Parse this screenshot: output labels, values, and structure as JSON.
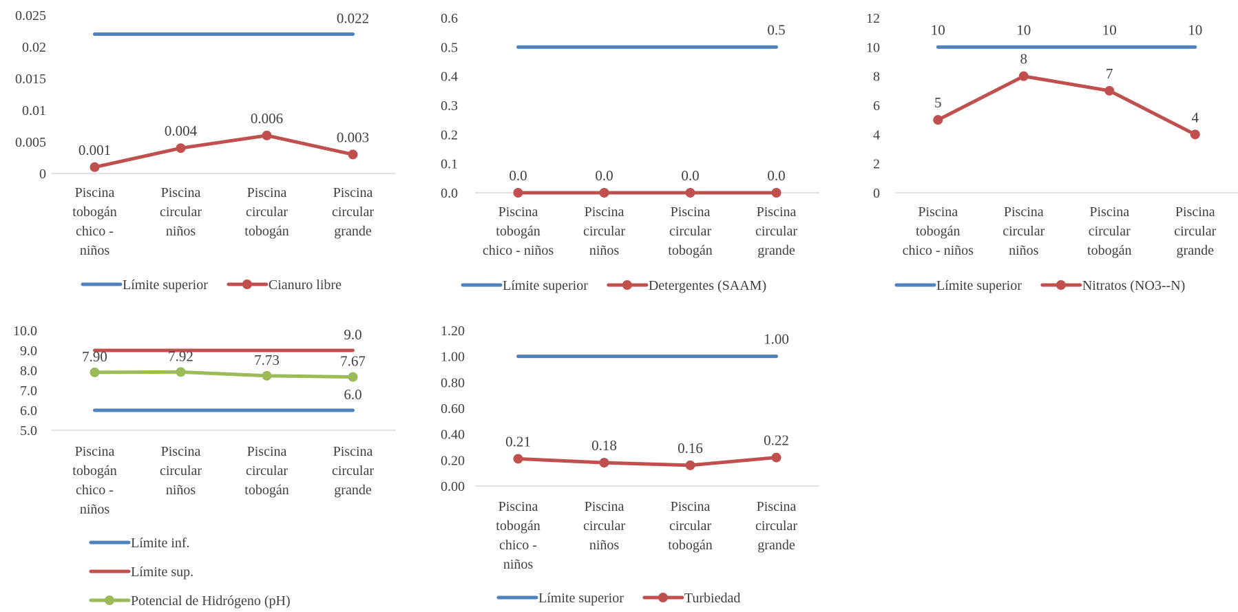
{
  "chart_data": [
    {
      "type": "line",
      "categories": [
        [
          "Piscina",
          "tobogán",
          "chico -",
          "niños"
        ],
        [
          "Piscina",
          "circular",
          "niños"
        ],
        [
          "Piscina",
          "circular",
          "tobogán"
        ],
        [
          "Piscina",
          "circular",
          "grande"
        ]
      ],
      "ylim": [
        0,
        0.025
      ],
      "yticks": [
        "0.025",
        "0.02",
        "0.015",
        "0.01",
        "0.005",
        "0"
      ],
      "grid": false,
      "legend": "bottom",
      "series": [
        {
          "name": "Límite superior",
          "color": "#4F81BD",
          "marker": false,
          "values": [
            0.022,
            0.022,
            0.022,
            0.022
          ],
          "labels": [
            "",
            "",
            "",
            "0.022"
          ]
        },
        {
          "name": "Cianuro libre",
          "color": "#C0504D",
          "marker": true,
          "values": [
            0.001,
            0.004,
            0.006,
            0.003
          ],
          "labels": [
            "0.001",
            "0.004",
            "0.006",
            "0.003"
          ]
        }
      ]
    },
    {
      "type": "line",
      "categories": [
        [
          "Piscina",
          "tobogán",
          "chico - niños"
        ],
        [
          "Piscina",
          "circular",
          "niños"
        ],
        [
          "Piscina",
          "circular",
          "tobogán"
        ],
        [
          "Piscina",
          "circular",
          "grande"
        ]
      ],
      "ylim": [
        0,
        0.6
      ],
      "yticks": [
        "0.6",
        "0.5",
        "0.4",
        "0.3",
        "0.2",
        "0.1",
        "0.0"
      ],
      "grid": false,
      "legend": "bottom",
      "series": [
        {
          "name": "Límite superior",
          "color": "#4F81BD",
          "marker": false,
          "values": [
            0.5,
            0.5,
            0.5,
            0.5
          ],
          "labels": [
            "",
            "",
            "",
            "0.5"
          ]
        },
        {
          "name": "Detergentes (SAAM)",
          "color": "#C0504D",
          "marker": true,
          "values": [
            0.0,
            0.0,
            0.0,
            0.0
          ],
          "labels": [
            "0.0",
            "0.0",
            "0.0",
            "0.0"
          ]
        }
      ]
    },
    {
      "type": "line",
      "categories": [
        [
          "Piscina",
          "tobogán",
          "chico - niños"
        ],
        [
          "Piscina",
          "circular",
          "niños"
        ],
        [
          "Piscina",
          "circular",
          "tobogán"
        ],
        [
          "Piscina",
          "circular",
          "grande"
        ]
      ],
      "ylim": [
        0,
        12
      ],
      "yticks": [
        "12",
        "10",
        "8",
        "6",
        "4",
        "2",
        "0"
      ],
      "grid": false,
      "legend": "bottom",
      "series": [
        {
          "name": "Límite superior",
          "color": "#4F81BD",
          "marker": false,
          "values": [
            10,
            10,
            10,
            10
          ],
          "labels": [
            "10",
            "10",
            "10",
            "10"
          ]
        },
        {
          "name": "Nitratos (NO3--N)",
          "color": "#C0504D",
          "marker": true,
          "values": [
            5,
            8,
            7,
            4
          ],
          "labels": [
            "5",
            "8",
            "7",
            "4"
          ]
        }
      ]
    },
    {
      "type": "line",
      "categories": [
        [
          "Piscina",
          "tobogán",
          "chico -",
          "niños"
        ],
        [
          "Piscina",
          "circular",
          "niños"
        ],
        [
          "Piscina",
          "circular",
          "tobogán"
        ],
        [
          "Piscina",
          "circular",
          "grande"
        ]
      ],
      "ylim": [
        5,
        10
      ],
      "yticks": [
        "10.0",
        "9.0",
        "8.0",
        "7.0",
        "6.0",
        "5.0"
      ],
      "grid": false,
      "legend": "bottom",
      "series": [
        {
          "name": "Límite inf.",
          "color": "#4F81BD",
          "marker": false,
          "values": [
            6.0,
            6.0,
            6.0,
            6.0
          ],
          "labels": [
            "",
            "",
            "",
            "6.0"
          ]
        },
        {
          "name": "Límite sup.",
          "color": "#C0504D",
          "marker": false,
          "values": [
            9.0,
            9.0,
            9.0,
            9.0
          ],
          "labels": [
            "",
            "",
            "",
            "9.0"
          ]
        },
        {
          "name": "Potencial de Hidrógeno (pH)",
          "color": "#9BBB59",
          "marker": true,
          "values": [
            7.9,
            7.92,
            7.73,
            7.67
          ],
          "labels": [
            "7.90",
            "7.92",
            "7.73",
            "7.67"
          ]
        }
      ]
    },
    {
      "type": "line",
      "categories": [
        [
          "Piscina",
          "tobogán",
          "chico -",
          "niños"
        ],
        [
          "Piscina",
          "circular",
          "niños"
        ],
        [
          "Piscina",
          "circular",
          "tobogán"
        ],
        [
          "Piscina",
          "circular",
          "grande"
        ]
      ],
      "ylim": [
        0,
        1.2
      ],
      "yticks": [
        "1.20",
        "1.00",
        "0.80",
        "0.60",
        "0.40",
        "0.20",
        "0.00"
      ],
      "grid": false,
      "legend": "bottom",
      "series": [
        {
          "name": "Límite superior",
          "color": "#4F81BD",
          "marker": false,
          "values": [
            1.0,
            1.0,
            1.0,
            1.0
          ],
          "labels": [
            "",
            "",
            "",
            "1.00"
          ]
        },
        {
          "name": "Turbiedad",
          "color": "#C0504D",
          "marker": true,
          "values": [
            0.21,
            0.18,
            0.16,
            0.22
          ],
          "labels": [
            "0.21",
            "0.18",
            "0.16",
            "0.22"
          ]
        }
      ]
    }
  ]
}
